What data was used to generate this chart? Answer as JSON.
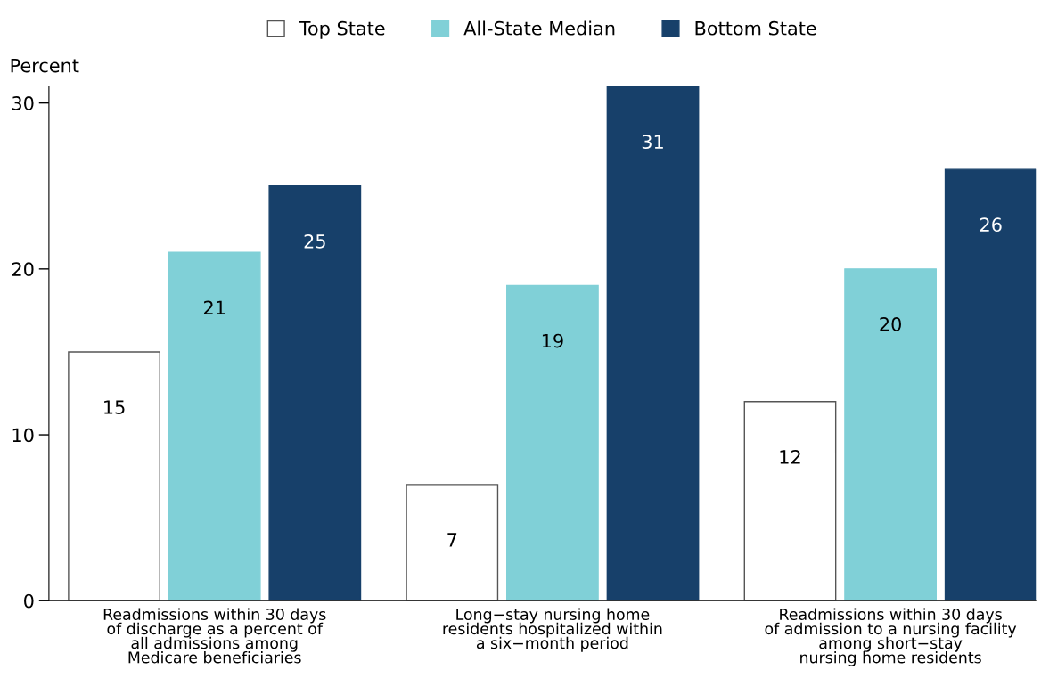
{
  "chart_data": {
    "type": "bar",
    "ylabel": "Percent",
    "categories": [
      "Readmissions within 30 days\nof discharge as a percent of\nall admissions among\nMedicare beneficiaries",
      "Long−stay nursing home\nresidents hospitalized within\na six−month period",
      "Readmissions within 30 days\nof admission to a nursing facility\namong short−stay\nnursing home residents"
    ],
    "series": [
      {
        "name": "Top State",
        "color": "#ffffff",
        "values": [
          15,
          7,
          12
        ]
      },
      {
        "name": "All-State Median",
        "color": "#80d0d7",
        "values": [
          21,
          19,
          20
        ]
      },
      {
        "name": "Bottom State",
        "color": "#17406a",
        "values": [
          25,
          31,
          26
        ]
      }
    ],
    "ylim": [
      0,
      31
    ],
    "yticks": [
      0,
      10,
      20,
      30
    ],
    "data_labels": true,
    "legend": "top",
    "grid": false
  }
}
